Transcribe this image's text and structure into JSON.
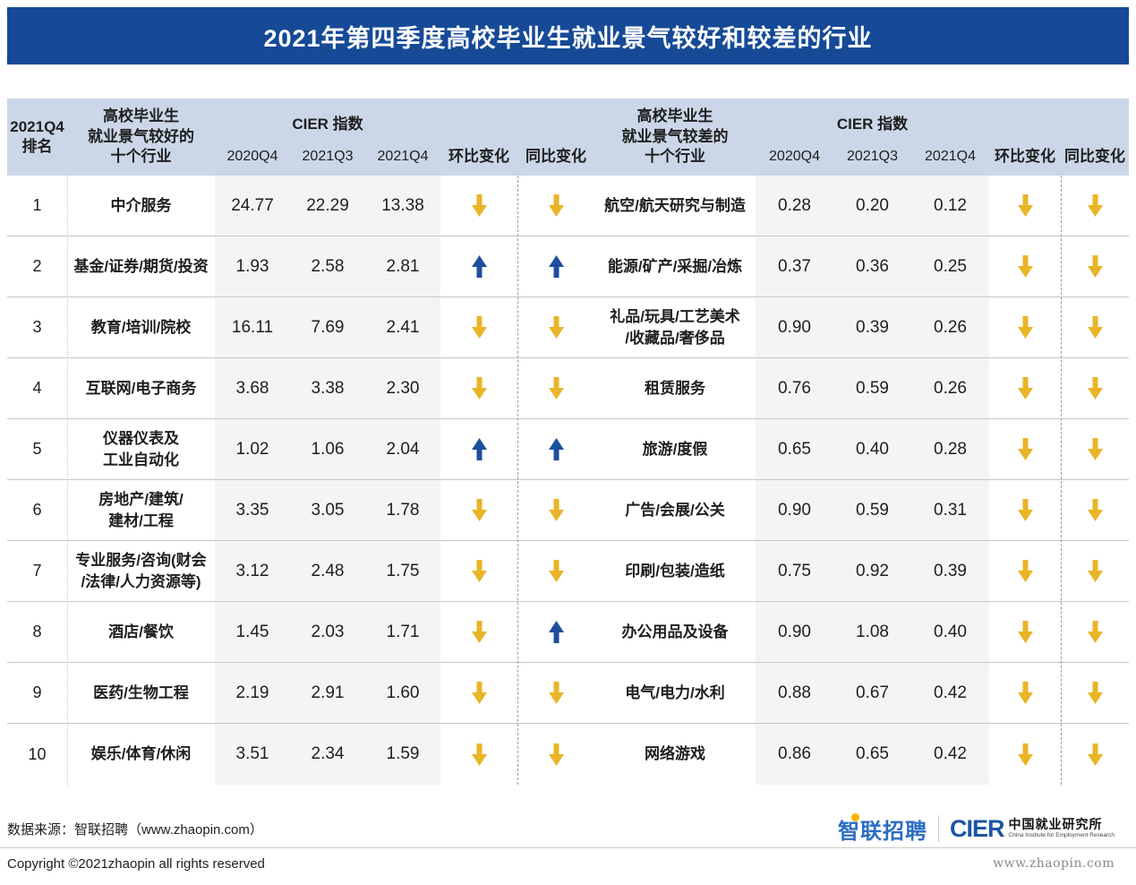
{
  "title": "2021年第四季度高校毕业生就业景气较好和较差的行业",
  "colors": {
    "title_bar": "#164A96",
    "header_bg": "#CBD7E8",
    "num_band": "#F4F4F4",
    "arrow_up": "#1D4F9E",
    "arrow_down": "#E9B427",
    "logo_blue": "#2D6DC3",
    "logo_dot": "#F7B500",
    "cier_blue": "#1C55A4"
  },
  "header": {
    "rank": "2021Q4\n排名",
    "left_industry": "高校毕业生\n就业景气较好的\n十个行业",
    "right_industry": "高校毕业生\n就业景气较差的\n十个行业",
    "cier": "CIER  指数",
    "q1": "2020Q4",
    "q2": "2021Q3",
    "q3": "2021Q4",
    "mom": "环比变化",
    "yoy": "同比变化"
  },
  "chart_data": {
    "type": "table",
    "title": "2021年第四季度高校毕业生就业景气较好和较差的行业",
    "index_name": "CIER 指数",
    "quarter_columns": [
      "2020Q4",
      "2021Q3",
      "2021Q4"
    ],
    "change_columns": [
      "环比变化",
      "同比变化"
    ],
    "better": [
      {
        "rank": "1",
        "industry": "中介服务",
        "values": [
          "24.77",
          "22.29",
          "13.38"
        ],
        "mom": "down",
        "yoy": "down"
      },
      {
        "rank": "2",
        "industry": "基金/证券/期货/投资",
        "values": [
          "1.93",
          "2.58",
          "2.81"
        ],
        "mom": "up",
        "yoy": "up"
      },
      {
        "rank": "3",
        "industry": "教育/培训/院校",
        "values": [
          "16.11",
          "7.69",
          "2.41"
        ],
        "mom": "down",
        "yoy": "down"
      },
      {
        "rank": "4",
        "industry": "互联网/电子商务",
        "values": [
          "3.68",
          "3.38",
          "2.30"
        ],
        "mom": "down",
        "yoy": "down"
      },
      {
        "rank": "5",
        "industry": "仪器仪表及\n工业自动化",
        "values": [
          "1.02",
          "1.06",
          "2.04"
        ],
        "mom": "up",
        "yoy": "up"
      },
      {
        "rank": "6",
        "industry": "房地产/建筑/\n建材/工程",
        "values": [
          "3.35",
          "3.05",
          "1.78"
        ],
        "mom": "down",
        "yoy": "down"
      },
      {
        "rank": "7",
        "industry": "专业服务/咨询(财会\n/法律/人力资源等)",
        "values": [
          "3.12",
          "2.48",
          "1.75"
        ],
        "mom": "down",
        "yoy": "down"
      },
      {
        "rank": "8",
        "industry": "酒店/餐饮",
        "values": [
          "1.45",
          "2.03",
          "1.71"
        ],
        "mom": "down",
        "yoy": "up"
      },
      {
        "rank": "9",
        "industry": "医药/生物工程",
        "values": [
          "2.19",
          "2.91",
          "1.60"
        ],
        "mom": "down",
        "yoy": "down"
      },
      {
        "rank": "10",
        "industry": "娱乐/体育/休闲",
        "values": [
          "3.51",
          "2.34",
          "1.59"
        ],
        "mom": "down",
        "yoy": "down"
      }
    ],
    "worse": [
      {
        "industry": "航空/航天研究与制造",
        "values": [
          "0.28",
          "0.20",
          "0.12"
        ],
        "mom": "down",
        "yoy": "down"
      },
      {
        "industry": "能源/矿产/采掘/冶炼",
        "values": [
          "0.37",
          "0.36",
          "0.25"
        ],
        "mom": "down",
        "yoy": "down"
      },
      {
        "industry": "礼品/玩具/工艺美术\n/收藏品/奢侈品",
        "values": [
          "0.90",
          "0.39",
          "0.26"
        ],
        "mom": "down",
        "yoy": "down"
      },
      {
        "industry": "租赁服务",
        "values": [
          "0.76",
          "0.59",
          "0.26"
        ],
        "mom": "down",
        "yoy": "down"
      },
      {
        "industry": "旅游/度假",
        "values": [
          "0.65",
          "0.40",
          "0.28"
        ],
        "mom": "down",
        "yoy": "down"
      },
      {
        "industry": "广告/会展/公关",
        "values": [
          "0.90",
          "0.59",
          "0.31"
        ],
        "mom": "down",
        "yoy": "down"
      },
      {
        "industry": "印刷/包装/造纸",
        "values": [
          "0.75",
          "0.92",
          "0.39"
        ],
        "mom": "down",
        "yoy": "down"
      },
      {
        "industry": "办公用品及设备",
        "values": [
          "0.90",
          "1.08",
          "0.40"
        ],
        "mom": "down",
        "yoy": "down"
      },
      {
        "industry": "电气/电力/水利",
        "values": [
          "0.88",
          "0.67",
          "0.42"
        ],
        "mom": "down",
        "yoy": "down"
      },
      {
        "industry": "网络游戏",
        "values": [
          "0.86",
          "0.65",
          "0.42"
        ],
        "mom": "down",
        "yoy": "down"
      }
    ]
  },
  "footer": {
    "source": "数据来源：智联招聘（www.zhaopin.com）",
    "copyright": "Copyright ©2021zhaopin all rights reserved",
    "zhaopin_logo": "智联招聘",
    "cier_logo": "CIER",
    "cier_cn": "中国就业研究所",
    "cier_en": "China Institute for Employment Research",
    "website": "www.zhaopin.com"
  }
}
